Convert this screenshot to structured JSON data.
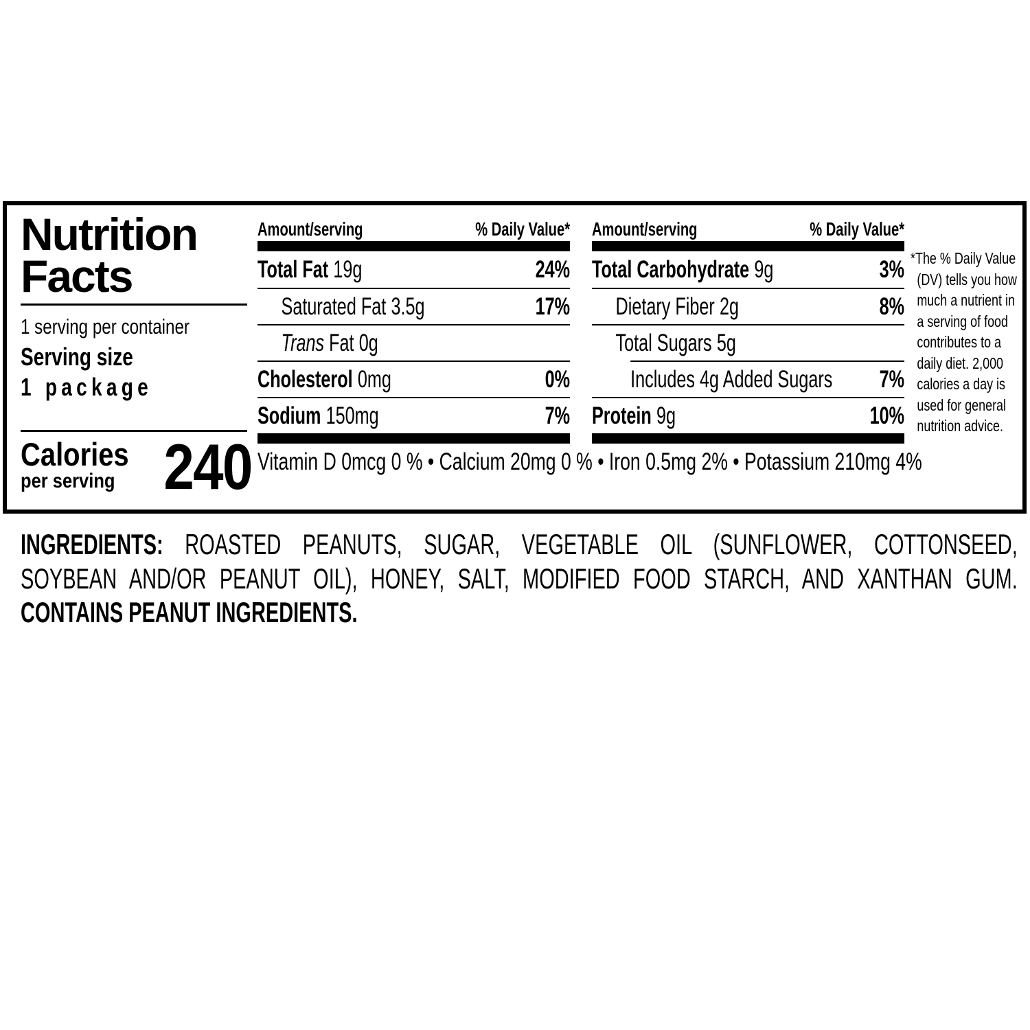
{
  "panel": {
    "title_line1": "Nutrition",
    "title_line2": "Facts",
    "servings_per_container": "1 serving per container",
    "serving_size_label": "Serving size",
    "serving_size_value": "1 package",
    "calories_label": "Calories",
    "calories_sublabel": "per serving",
    "calories_value": "240",
    "col_header_amount": "Amount/serving",
    "col_header_dv": "% Daily Value*",
    "mid_rows": [
      {
        "name": "Total Fat",
        "amount": "19g",
        "dv": "24%"
      },
      {
        "name": "Saturated Fat",
        "amount": "3.5g",
        "dv": "17%"
      },
      {
        "name_italic": "Trans",
        "name": " Fat",
        "amount": "0g",
        "dv": ""
      },
      {
        "name": "Cholesterol",
        "amount": "0mg",
        "dv": "0%"
      },
      {
        "name": "Sodium",
        "amount": "150mg",
        "dv": "7%"
      }
    ],
    "right_rows": [
      {
        "name": "Total Carbohydrate",
        "amount": "9g",
        "dv": "3%"
      },
      {
        "name": "Dietary Fiber",
        "amount": "2g",
        "dv": "8%"
      },
      {
        "name": "Total Sugars",
        "amount": "5g",
        "dv": ""
      },
      {
        "name": "Includes 4g Added Sugars",
        "amount": "",
        "dv": "7%"
      },
      {
        "name": "Protein",
        "amount": "9g",
        "dv": "10%"
      }
    ],
    "vitamins": "Vitamin D 0mcg 0 % • Calcium 20mg 0 % • Iron 0.5mg 2% • Potassium 210mg 4%",
    "footnote": "*The % Daily Value\n(DV) tells you how\nmuch a nutrient in\na serving of food\ncontributes to a\ndaily diet. 2,000\ncalories a day is\nused for general\nnutrition advice."
  },
  "ingredients": {
    "label_bold": "INGREDIENTS:",
    "line1_rest": "ROASTED PEANUTS, SUGAR, VEGETABLE OIL (SUNFLOWER, COTTONSEED,",
    "line2": "SOYBEAN AND/OR PEANUT OIL), HONEY, SALT, MODIFIED FOOD STARCH, AND XANTHAN GUM.",
    "line3": "CONTAINS PEANUT INGREDIENTS."
  },
  "colors": {
    "ink": "#000000",
    "background": "#ffffff"
  }
}
